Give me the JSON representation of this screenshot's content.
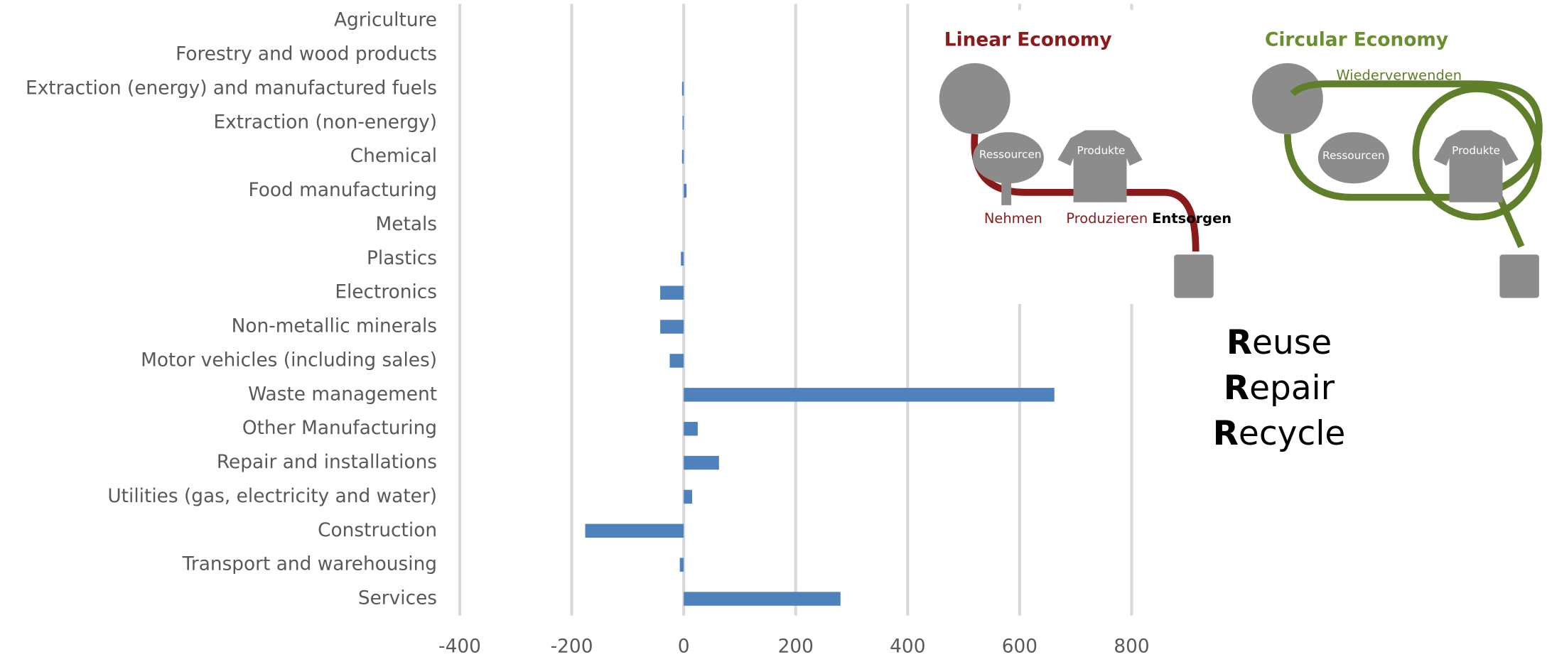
{
  "chart_data": {
    "type": "bar",
    "orientation": "horizontal",
    "categories": [
      "Agriculture",
      "Forestry and wood products",
      "Extraction (energy) and manufactured fuels",
      "Extraction (non-energy)",
      "Chemical",
      "Food manufacturing",
      "Metals",
      "Plastics",
      "Electronics",
      "Non-metallic minerals",
      "Motor vehicles (including sales)",
      "Waste management",
      "Other Manufacturing",
      "Repair and installations",
      "Utilities (gas, electricity and water)",
      "Construction",
      "Transport and warehousing",
      "Services"
    ],
    "values": [
      0,
      0,
      -3,
      -2,
      -3,
      5,
      0,
      -5,
      -42,
      -42,
      -25,
      662,
      25,
      63,
      15,
      -176,
      -7,
      280
    ],
    "color": "#4f81bd",
    "xlim": [
      -400,
      800
    ],
    "xticks": [
      -400,
      -200,
      0,
      200,
      400,
      600,
      800
    ],
    "grid": true,
    "annotations": {
      "linear_title": "Linear Economy",
      "circular_title": "Circular Economy",
      "reuse_loop": "Wiederverwenden",
      "resources_linear": "Ressourcen",
      "products_linear": "Produkte",
      "take": "Nehmen",
      "produce": "Produzieren",
      "dispose": "Entsorgen",
      "resources_circular": "Ressourcen",
      "products_circular": "Produkte",
      "slogan": [
        "Reuse",
        "Repair",
        "Recycle"
      ]
    }
  }
}
